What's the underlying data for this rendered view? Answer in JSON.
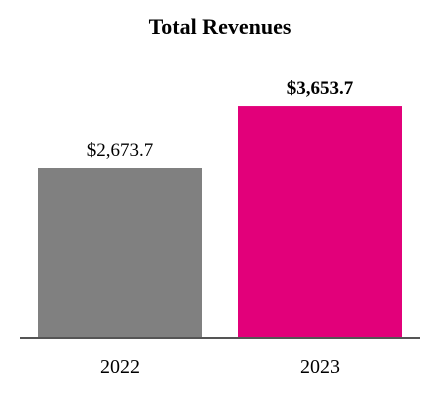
{
  "chart_data": {
    "type": "bar",
    "title": "Total Revenues",
    "categories": [
      "2022",
      "2023"
    ],
    "values": [
      2673.7,
      3653.7
    ],
    "value_labels": [
      "$2,673.7",
      "$3,653.7"
    ],
    "value_label_bold": [
      false,
      true
    ],
    "bar_colors": [
      "#808080",
      "#E2007A"
    ],
    "axis_color": "#555555",
    "xlabel": "",
    "ylabel": "",
    "grid": false
  }
}
